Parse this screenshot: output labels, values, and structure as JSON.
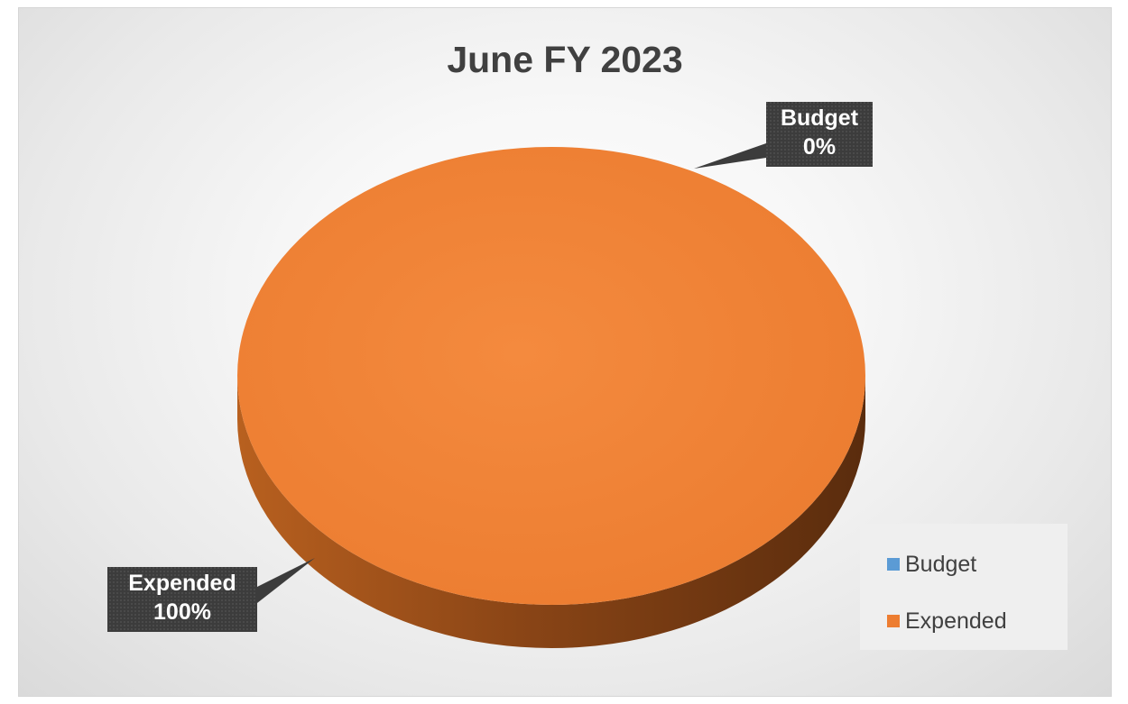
{
  "chart_data": {
    "type": "pie",
    "title": "June FY 2023",
    "categories": [
      "Budget",
      "Expended"
    ],
    "values": [
      0,
      100
    ],
    "value_unit": "%",
    "colors": [
      "#5b9bd5",
      "#ed7d31"
    ],
    "data_labels": [
      {
        "category": "Budget",
        "value": "0%"
      },
      {
        "category": "Expended",
        "value": "100%"
      }
    ],
    "legend": {
      "placement": "bottom-right",
      "entries": [
        {
          "label": "Budget",
          "color": "#5b9bd5"
        },
        {
          "label": "Expended",
          "color": "#ed7d31"
        }
      ]
    },
    "style": "3d"
  }
}
